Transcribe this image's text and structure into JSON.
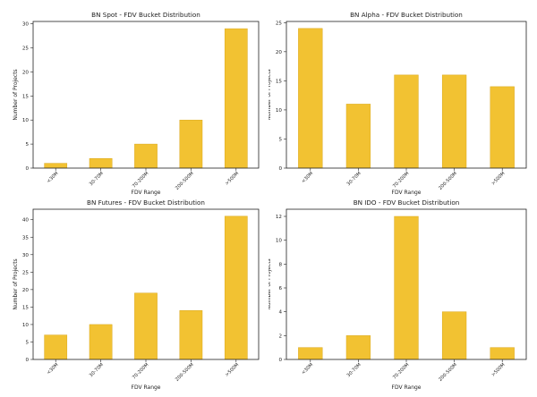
{
  "chart_data": [
    {
      "type": "bar",
      "title": "BN Spot - FDV Bucket Distribution",
      "xlabel": "FDV Range",
      "ylabel": "Number of Projects",
      "categories": [
        "<30M",
        "30-70M",
        "70-200M",
        "200-500M",
        ">500M"
      ],
      "values": [
        1,
        2,
        5,
        10,
        29
      ],
      "ylim": [
        0,
        30.5
      ],
      "yticks": [
        0,
        5,
        10,
        15,
        20,
        25,
        30
      ],
      "color": "#f2c232"
    },
    {
      "type": "bar",
      "title": "BN Alpha - FDV Bucket Distribution",
      "xlabel": "FDV Range",
      "ylabel": "Number of Projects",
      "categories": [
        "<30M",
        "30-70M",
        "70-200M",
        "200-500M",
        ">500M"
      ],
      "values": [
        24,
        11,
        16,
        16,
        14
      ],
      "ylim": [
        0,
        25.2
      ],
      "yticks": [
        0,
        5,
        10,
        15,
        20,
        25
      ],
      "color": "#f2c232"
    },
    {
      "type": "bar",
      "title": "BN Futures - FDV Bucket Distribution",
      "xlabel": "FDV Range",
      "ylabel": "Number of Projects",
      "categories": [
        "<30M",
        "30-70M",
        "70-200M",
        "200-500M",
        ">500M"
      ],
      "values": [
        7,
        10,
        19,
        14,
        41
      ],
      "ylim": [
        0,
        43
      ],
      "yticks": [
        0,
        5,
        10,
        15,
        20,
        25,
        30,
        35,
        40
      ],
      "color": "#f2c232"
    },
    {
      "type": "bar",
      "title": "BN IDO - FDV Bucket Distribution",
      "xlabel": "FDV Range",
      "ylabel": "Number of Projects",
      "categories": [
        "<30M",
        "30-70M",
        "70-200M",
        "200-500M",
        ">500M"
      ],
      "values": [
        1,
        2,
        12,
        4,
        1
      ],
      "ylim": [
        0,
        12.6
      ],
      "yticks": [
        0,
        2,
        4,
        6,
        8,
        10,
        12
      ],
      "color": "#f2c232"
    }
  ]
}
